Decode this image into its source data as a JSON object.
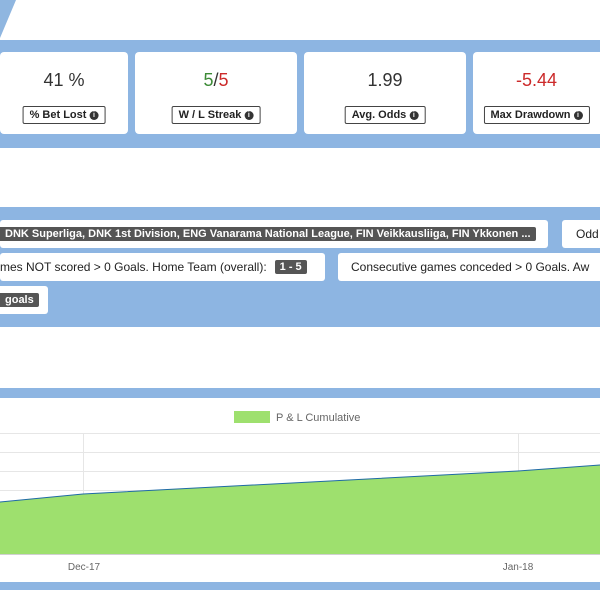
{
  "stats": [
    {
      "value": "41 %",
      "label": "% Bet Lost"
    },
    {
      "value_win": "5",
      "separator": "/",
      "value_loss": "5",
      "label": "W / L Streak"
    },
    {
      "value": "1.99",
      "label": "Avg. Odds"
    },
    {
      "value": "-5.44",
      "label": "Max Drawdown"
    }
  ],
  "filters": {
    "leagues_tag": "DNK Superliga, DNK 1st Division, ENG Vanarama National League, FIN Veikkausliiga, FIN Ykkonen ...",
    "odds_chip": "Odd",
    "home_filter_text": "mes NOT scored > 0 Goals. Home Team (overall):",
    "home_filter_tag": "1 - 5",
    "away_filter_text": "Consecutive games conceded > 0 Goals. Aw",
    "goals_tag": "goals"
  },
  "chart": {
    "legend": "P & L Cumulative",
    "fill_color": "#9ee06e",
    "line_color": "#1f6aa5"
  },
  "chart_data": {
    "type": "area",
    "series": [
      {
        "name": "P & L Cumulative"
      }
    ],
    "x": [
      "Dec-17",
      "Jan-18"
    ],
    "tick_labels": [
      "Dec-17",
      "Jan-18"
    ],
    "grid": true,
    "legend_position": "top-center"
  }
}
